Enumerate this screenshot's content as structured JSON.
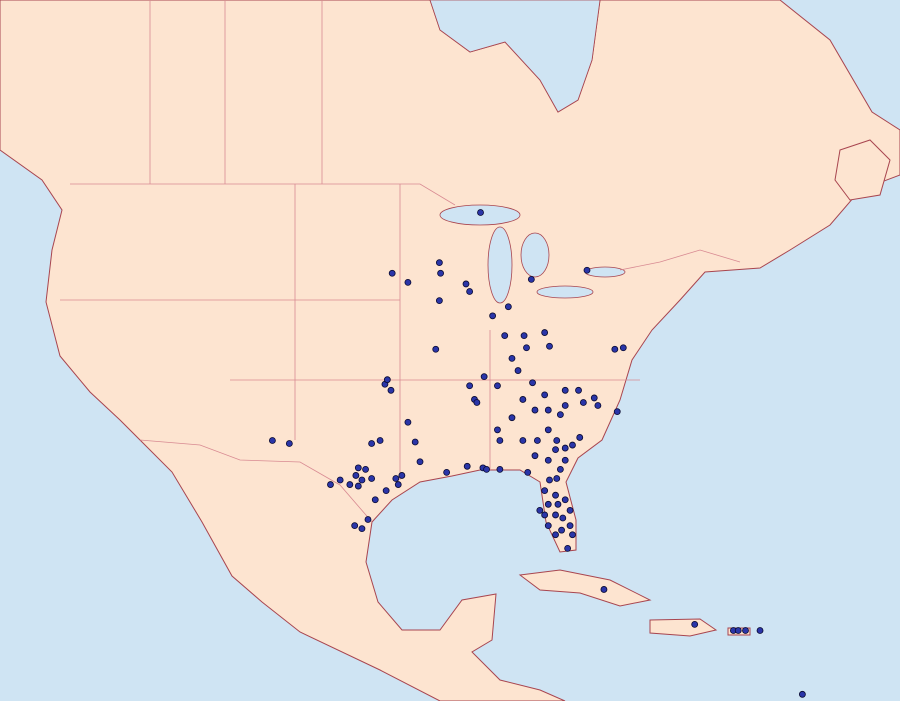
{
  "map": {
    "points": [
      [
        -87.3,
        47.0
      ],
      [
        -94.6,
        43.0
      ],
      [
        -93.3,
        42.4
      ],
      [
        -90.7,
        43.7
      ],
      [
        -90.6,
        43.0
      ],
      [
        -88.5,
        42.3
      ],
      [
        -88.2,
        41.8
      ],
      [
        -90.7,
        41.2
      ],
      [
        -83.1,
        42.6
      ],
      [
        -78.5,
        43.2
      ],
      [
        -86.3,
        40.2
      ],
      [
        -85.0,
        40.8
      ],
      [
        -85.3,
        38.9
      ],
      [
        -83.7,
        38.9
      ],
      [
        -82.0,
        39.1
      ],
      [
        -83.5,
        38.1
      ],
      [
        -84.7,
        37.4
      ],
      [
        -91.0,
        38.0
      ],
      [
        -81.6,
        38.2
      ],
      [
        -84.2,
        36.6
      ],
      [
        -87.0,
        36.2
      ],
      [
        -76.2,
        38.0
      ],
      [
        -75.5,
        38.1
      ],
      [
        -95.2,
        35.7
      ],
      [
        -94.7,
        35.3
      ],
      [
        -95.0,
        36.0
      ],
      [
        -88.2,
        35.6
      ],
      [
        -87.8,
        34.7
      ],
      [
        -87.6,
        34.5
      ],
      [
        -85.9,
        35.6
      ],
      [
        -83.0,
        35.8
      ],
      [
        -82.0,
        35.0
      ],
      [
        -80.3,
        35.3
      ],
      [
        -79.2,
        35.3
      ],
      [
        -78.8,
        34.5
      ],
      [
        -77.9,
        34.8
      ],
      [
        -77.6,
        34.3
      ],
      [
        -76.0,
        33.9
      ],
      [
        -83.8,
        34.7
      ],
      [
        -82.8,
        34.0
      ],
      [
        -81.7,
        34.0
      ],
      [
        -80.7,
        33.7
      ],
      [
        -80.3,
        34.3
      ],
      [
        -84.7,
        33.5
      ],
      [
        -93.3,
        33.2
      ],
      [
        -92.7,
        31.9
      ],
      [
        -95.6,
        32.0
      ],
      [
        -96.3,
        31.8
      ],
      [
        -104.5,
        32.0
      ],
      [
        -103.1,
        31.8
      ],
      [
        -85.9,
        32.7
      ],
      [
        -85.7,
        32.0
      ],
      [
        -83.8,
        32.0
      ],
      [
        -82.6,
        32.0
      ],
      [
        -81.7,
        32.7
      ],
      [
        -81.0,
        32.0
      ],
      [
        -80.3,
        31.5
      ],
      [
        -79.7,
        31.7
      ],
      [
        -79.1,
        32.2
      ],
      [
        -81.1,
        31.4
      ],
      [
        -80.3,
        30.7
      ],
      [
        -80.7,
        30.1
      ],
      [
        -82.8,
        31.0
      ],
      [
        -81.7,
        30.7
      ],
      [
        -92.3,
        30.6
      ],
      [
        -90.1,
        29.9
      ],
      [
        -88.4,
        30.3
      ],
      [
        -87.1,
        30.2
      ],
      [
        -86.8,
        30.1
      ],
      [
        -85.7,
        30.1
      ],
      [
        -83.4,
        29.9
      ],
      [
        -97.4,
        30.2
      ],
      [
        -96.8,
        30.1
      ],
      [
        -97.6,
        29.7
      ],
      [
        -97.1,
        29.4
      ],
      [
        -96.3,
        29.5
      ],
      [
        -94.3,
        29.5
      ],
      [
        -93.8,
        29.7
      ],
      [
        -98.9,
        29.4
      ],
      [
        -98.1,
        29.1
      ],
      [
        -97.4,
        29.0
      ],
      [
        -99.7,
        29.1
      ],
      [
        -95.1,
        28.7
      ],
      [
        -96.0,
        28.1
      ],
      [
        -94.1,
        29.1
      ],
      [
        -81.6,
        29.4
      ],
      [
        -81.0,
        29.5
      ],
      [
        -82.0,
        28.7
      ],
      [
        -81.1,
        28.4
      ],
      [
        -80.3,
        28.1
      ],
      [
        -81.7,
        27.8
      ],
      [
        -80.9,
        27.8
      ],
      [
        -79.9,
        27.4
      ],
      [
        -82.0,
        27.1
      ],
      [
        -81.1,
        27.1
      ],
      [
        -80.5,
        26.9
      ],
      [
        -81.7,
        26.4
      ],
      [
        -79.9,
        26.4
      ],
      [
        -80.6,
        26.1
      ],
      [
        -81.1,
        25.8
      ],
      [
        -79.7,
        25.8
      ],
      [
        -80.1,
        24.9
      ],
      [
        -82.4,
        27.4
      ],
      [
        -97.7,
        26.4
      ],
      [
        -97.1,
        26.2
      ],
      [
        -96.6,
        26.8
      ],
      [
        -77.1,
        22.2
      ],
      [
        -69.6,
        19.9
      ],
      [
        -66.4,
        19.5
      ],
      [
        -66.0,
        19.5
      ],
      [
        -65.4,
        19.5
      ],
      [
        -64.2,
        19.5
      ],
      [
        -60.7,
        15.3
      ]
    ]
  }
}
